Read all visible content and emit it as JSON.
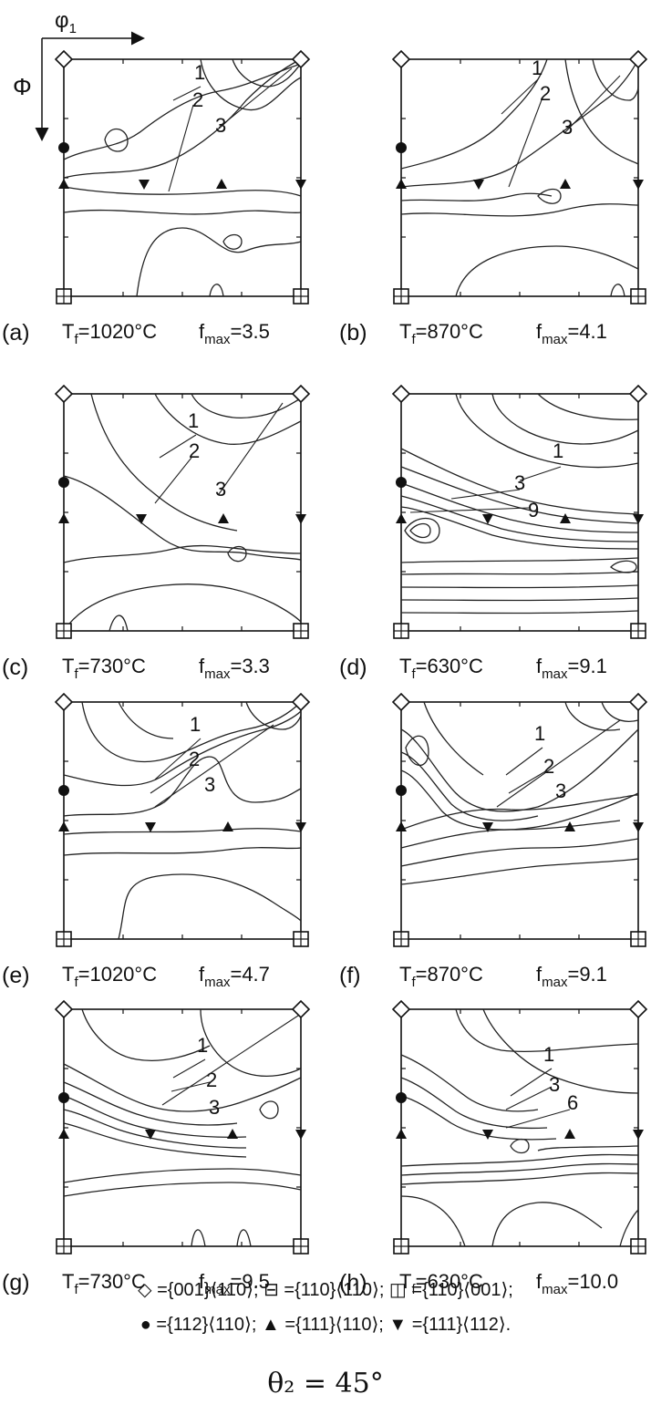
{
  "axes": {
    "x_label": "φ",
    "x_sub": "1",
    "y_label": "Φ"
  },
  "panels": [
    {
      "id": "a",
      "letter": "(a)",
      "tf": "=1020°C",
      "fmax": "=3.5",
      "levels": [
        "1",
        "2",
        "3"
      ]
    },
    {
      "id": "b",
      "letter": "(b)",
      "tf": "=870°C",
      "fmax": "=4.1",
      "levels": [
        "1",
        "2",
        "3"
      ]
    },
    {
      "id": "c",
      "letter": "(c)",
      "tf": "=730°C",
      "fmax": "=3.3",
      "levels": [
        "1",
        "2",
        "3"
      ]
    },
    {
      "id": "d",
      "letter": "(d)",
      "tf": "=630°C",
      "fmax": "=9.1",
      "levels": [
        "1",
        "3",
        "9"
      ]
    },
    {
      "id": "e",
      "letter": "(e)",
      "tf": "=1020°C",
      "fmax": "=4.7",
      "levels": [
        "1",
        "2",
        "3"
      ]
    },
    {
      "id": "f",
      "letter": "(f)",
      "tf": "=870°C",
      "fmax": "=9.1",
      "levels": [
        "1",
        "2",
        "3"
      ]
    },
    {
      "id": "g",
      "letter": "(g)",
      "tf": "=730°C",
      "fmax": "=9.5",
      "levels": [
        "1",
        "2",
        "3"
      ]
    },
    {
      "id": "h",
      "letter": "(h)",
      "tf": "=630°C",
      "fmax": "=10.0",
      "levels": [
        "1",
        "3",
        "6"
      ]
    }
  ],
  "label_parts": {
    "t": "T",
    "t_sub": "f",
    "f": "f",
    "f_sub": "max"
  },
  "legend": {
    "line1": "◇ ={001}⟨110⟩; ⊟ ={110}⟨110⟩; ◫ ={110}⟨001⟩;",
    "line2": "● ={112}⟨110⟩; ▲ ={111}⟨110⟩; ▼ ={111}⟨112⟩."
  },
  "theta": "θ₂ = 45°"
}
